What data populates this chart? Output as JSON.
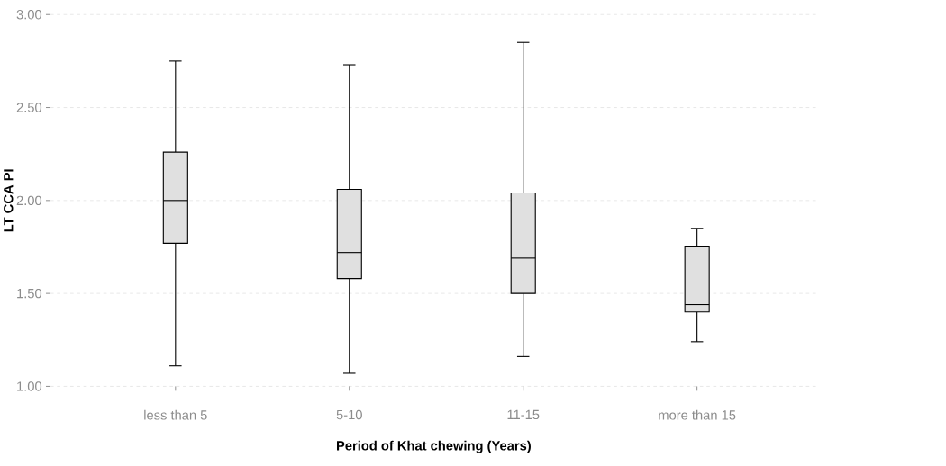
{
  "chart_data": {
    "type": "box",
    "xlabel": "Period of Khat chewing (Years)",
    "ylabel": "LT CCA PI",
    "categories": [
      "less than 5",
      "5-10",
      "11-15",
      "more than 15"
    ],
    "series": [
      {
        "color": "#e0e0e0",
        "boxes": [
          {
            "low": 1.11,
            "q1": 1.77,
            "median": 2.0,
            "q3": 2.26,
            "high": 2.75
          },
          {
            "low": 1.07,
            "q1": 1.58,
            "median": 1.72,
            "q3": 2.06,
            "high": 2.73
          },
          {
            "low": 1.16,
            "q1": 1.5,
            "median": 1.69,
            "q3": 2.04,
            "high": 2.85
          },
          {
            "low": 1.24,
            "q1": 1.4,
            "median": 1.44,
            "q3": 1.75,
            "high": 1.85
          }
        ]
      }
    ],
    "ylim": [
      1,
      3
    ],
    "yticks": [
      {
        "value": 1,
        "label": "1.00"
      },
      {
        "value": 1.5,
        "label": "1.50"
      },
      {
        "value": 2,
        "label": "2.00"
      },
      {
        "value": 2.5,
        "label": "2.50"
      },
      {
        "value": 3,
        "label": "3.00"
      }
    ],
    "grid": "y"
  }
}
